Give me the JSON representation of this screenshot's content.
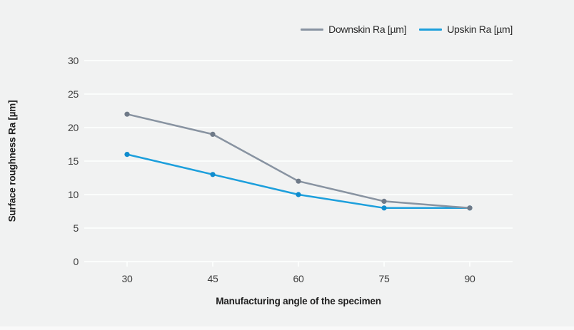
{
  "page": {
    "background_color": "#F1F2F2"
  },
  "chart_data": {
    "type": "line",
    "categories": [
      "30",
      "45",
      "60",
      "75",
      "90"
    ],
    "series": [
      {
        "name": "Downskin Ra [µm]",
        "values": [
          22,
          19,
          12,
          9,
          8
        ],
        "line_color": "#8893A1",
        "marker_color": "#6F7A88"
      },
      {
        "name": "Upskin Ra [µm]",
        "values": [
          16,
          13,
          10,
          8,
          8
        ],
        "line_color": "#1C9FDC",
        "marker_color": "#0F8CCE"
      }
    ],
    "title": "",
    "xlabel": "Manufacturing angle of the specimen",
    "ylabel": "Surface roughness Ra [µm]",
    "ylim": [
      0,
      30
    ],
    "y_ticks": [
      0,
      5,
      10,
      15,
      20,
      25,
      30
    ],
    "grid": true,
    "gridline_color": "#FBFDFC",
    "tick_mark_color": "#FBFDFC",
    "legend_position": "top-right",
    "tick_label_color": "#3D3D3D",
    "axis_label_color": "#1F1F1F"
  }
}
